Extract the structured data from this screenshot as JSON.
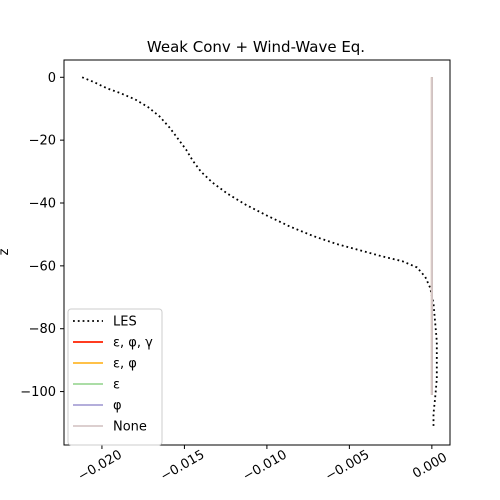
{
  "chart_data": {
    "type": "line",
    "title": "Weak Conv + Wind-Wave Eq.",
    "xlabel": "",
    "ylabel": "z",
    "xlim": [
      -0.0223,
      0.0011
    ],
    "ylim": [
      -117,
      5.5
    ],
    "x_ticks": [
      -0.02,
      -0.015,
      -0.01,
      -0.005,
      0.0
    ],
    "x_tick_labels": [
      "−0.020",
      "−0.015",
      "−0.010",
      "−0.005",
      "0.000"
    ],
    "y_ticks": [
      0,
      -20,
      -40,
      -60,
      -80,
      -100
    ],
    "y_tick_labels": [
      "0",
      "−20",
      "−40",
      "−60",
      "−80",
      "−100"
    ],
    "grid": false,
    "legend_position": "lower-left",
    "series": [
      {
        "name": "LES",
        "color": "#000000",
        "style": "dotted",
        "x": [
          -0.0212,
          -0.0205,
          -0.0197,
          -0.0189,
          -0.018,
          -0.0172,
          -0.0165,
          -0.0159,
          -0.0154,
          -0.0149,
          -0.0145,
          -0.014,
          -0.0133,
          -0.0124,
          -0.0113,
          -0.01,
          -0.0086,
          -0.0072,
          -0.0058,
          -0.0044,
          -0.003,
          -0.0018,
          -0.0009,
          -0.0004,
          -0.0001,
          0.0001,
          0.0002,
          0.0003,
          0.0003,
          0.0003,
          0.0002,
          0.0001,
          0.0001
        ],
        "y": [
          0,
          -1.5,
          -3.5,
          -5,
          -7,
          -9.5,
          -12.5,
          -16,
          -19.5,
          -23,
          -26.5,
          -30,
          -33.5,
          -37,
          -40.5,
          -44,
          -47.5,
          -50.5,
          -53,
          -55,
          -57,
          -58.5,
          -60.5,
          -63.5,
          -67,
          -72,
          -78,
          -84,
          -90,
          -96,
          -102,
          -107,
          -111
        ]
      },
      {
        "name": "ε, φ, γ",
        "color": "#ff2000",
        "style": "solid",
        "x": [
          0,
          0
        ],
        "y": [
          0,
          -101
        ]
      },
      {
        "name": "ε, φ",
        "color": "#ffb82e",
        "style": "solid",
        "x": [
          0,
          0
        ],
        "y": [
          0,
          -101
        ]
      },
      {
        "name": "ε",
        "color": "#9fd89a",
        "style": "solid",
        "x": [
          0,
          0
        ],
        "y": [
          0,
          -101
        ]
      },
      {
        "name": "φ",
        "color": "#aaa3d6",
        "style": "solid",
        "x": [
          0,
          0
        ],
        "y": [
          0,
          -101
        ]
      },
      {
        "name": "None",
        "color": "#d7c8c8",
        "style": "solid",
        "x": [
          0,
          0
        ],
        "y": [
          0,
          -101
        ]
      }
    ]
  }
}
